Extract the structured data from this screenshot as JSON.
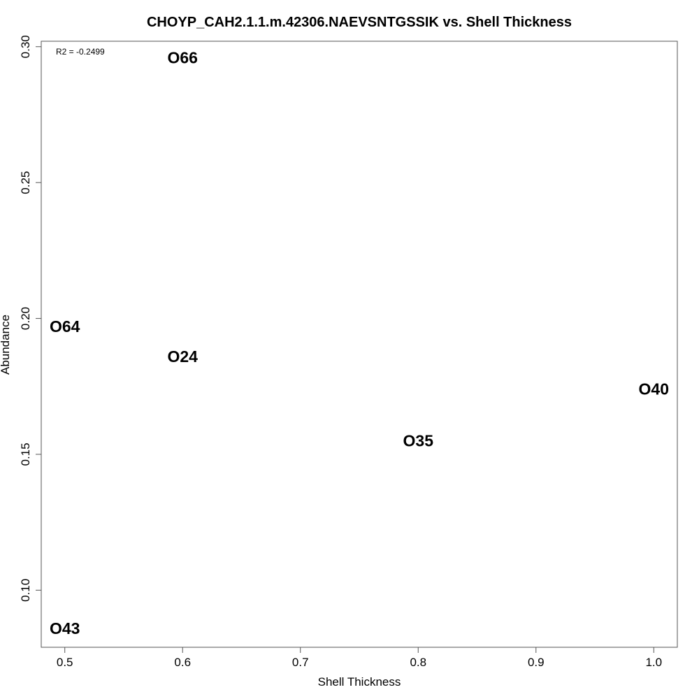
{
  "chart_data": {
    "type": "scatter",
    "title": "CHOYP_CAH2.1.1.m.42306.NAEVSNTGSSIK vs. Shell Thickness",
    "xlabel": "Shell Thickness",
    "ylabel": "Abundance",
    "xlim": [
      0.48,
      1.02
    ],
    "ylim": [
      0.079,
      0.302
    ],
    "x_ticks": [
      0.5,
      0.6,
      0.7,
      0.8,
      0.9,
      1.0
    ],
    "x_tick_labels": [
      "0.5",
      "0.6",
      "0.7",
      "0.8",
      "0.9",
      "1.0"
    ],
    "y_ticks": [
      0.1,
      0.15,
      0.2,
      0.25,
      0.3
    ],
    "y_tick_labels": [
      "0.10",
      "0.15",
      "0.20",
      "0.25",
      "0.30"
    ],
    "annotation": "R2 = -0.2499",
    "grid": false,
    "points": [
      {
        "label": "O66",
        "x": 0.6,
        "y": 0.296
      },
      {
        "label": "O64",
        "x": 0.5,
        "y": 0.197
      },
      {
        "label": "O24",
        "x": 0.6,
        "y": 0.186
      },
      {
        "label": "O40",
        "x": 1.0,
        "y": 0.174
      },
      {
        "label": "O35",
        "x": 0.8,
        "y": 0.155
      },
      {
        "label": "O43",
        "x": 0.5,
        "y": 0.086
      }
    ]
  }
}
